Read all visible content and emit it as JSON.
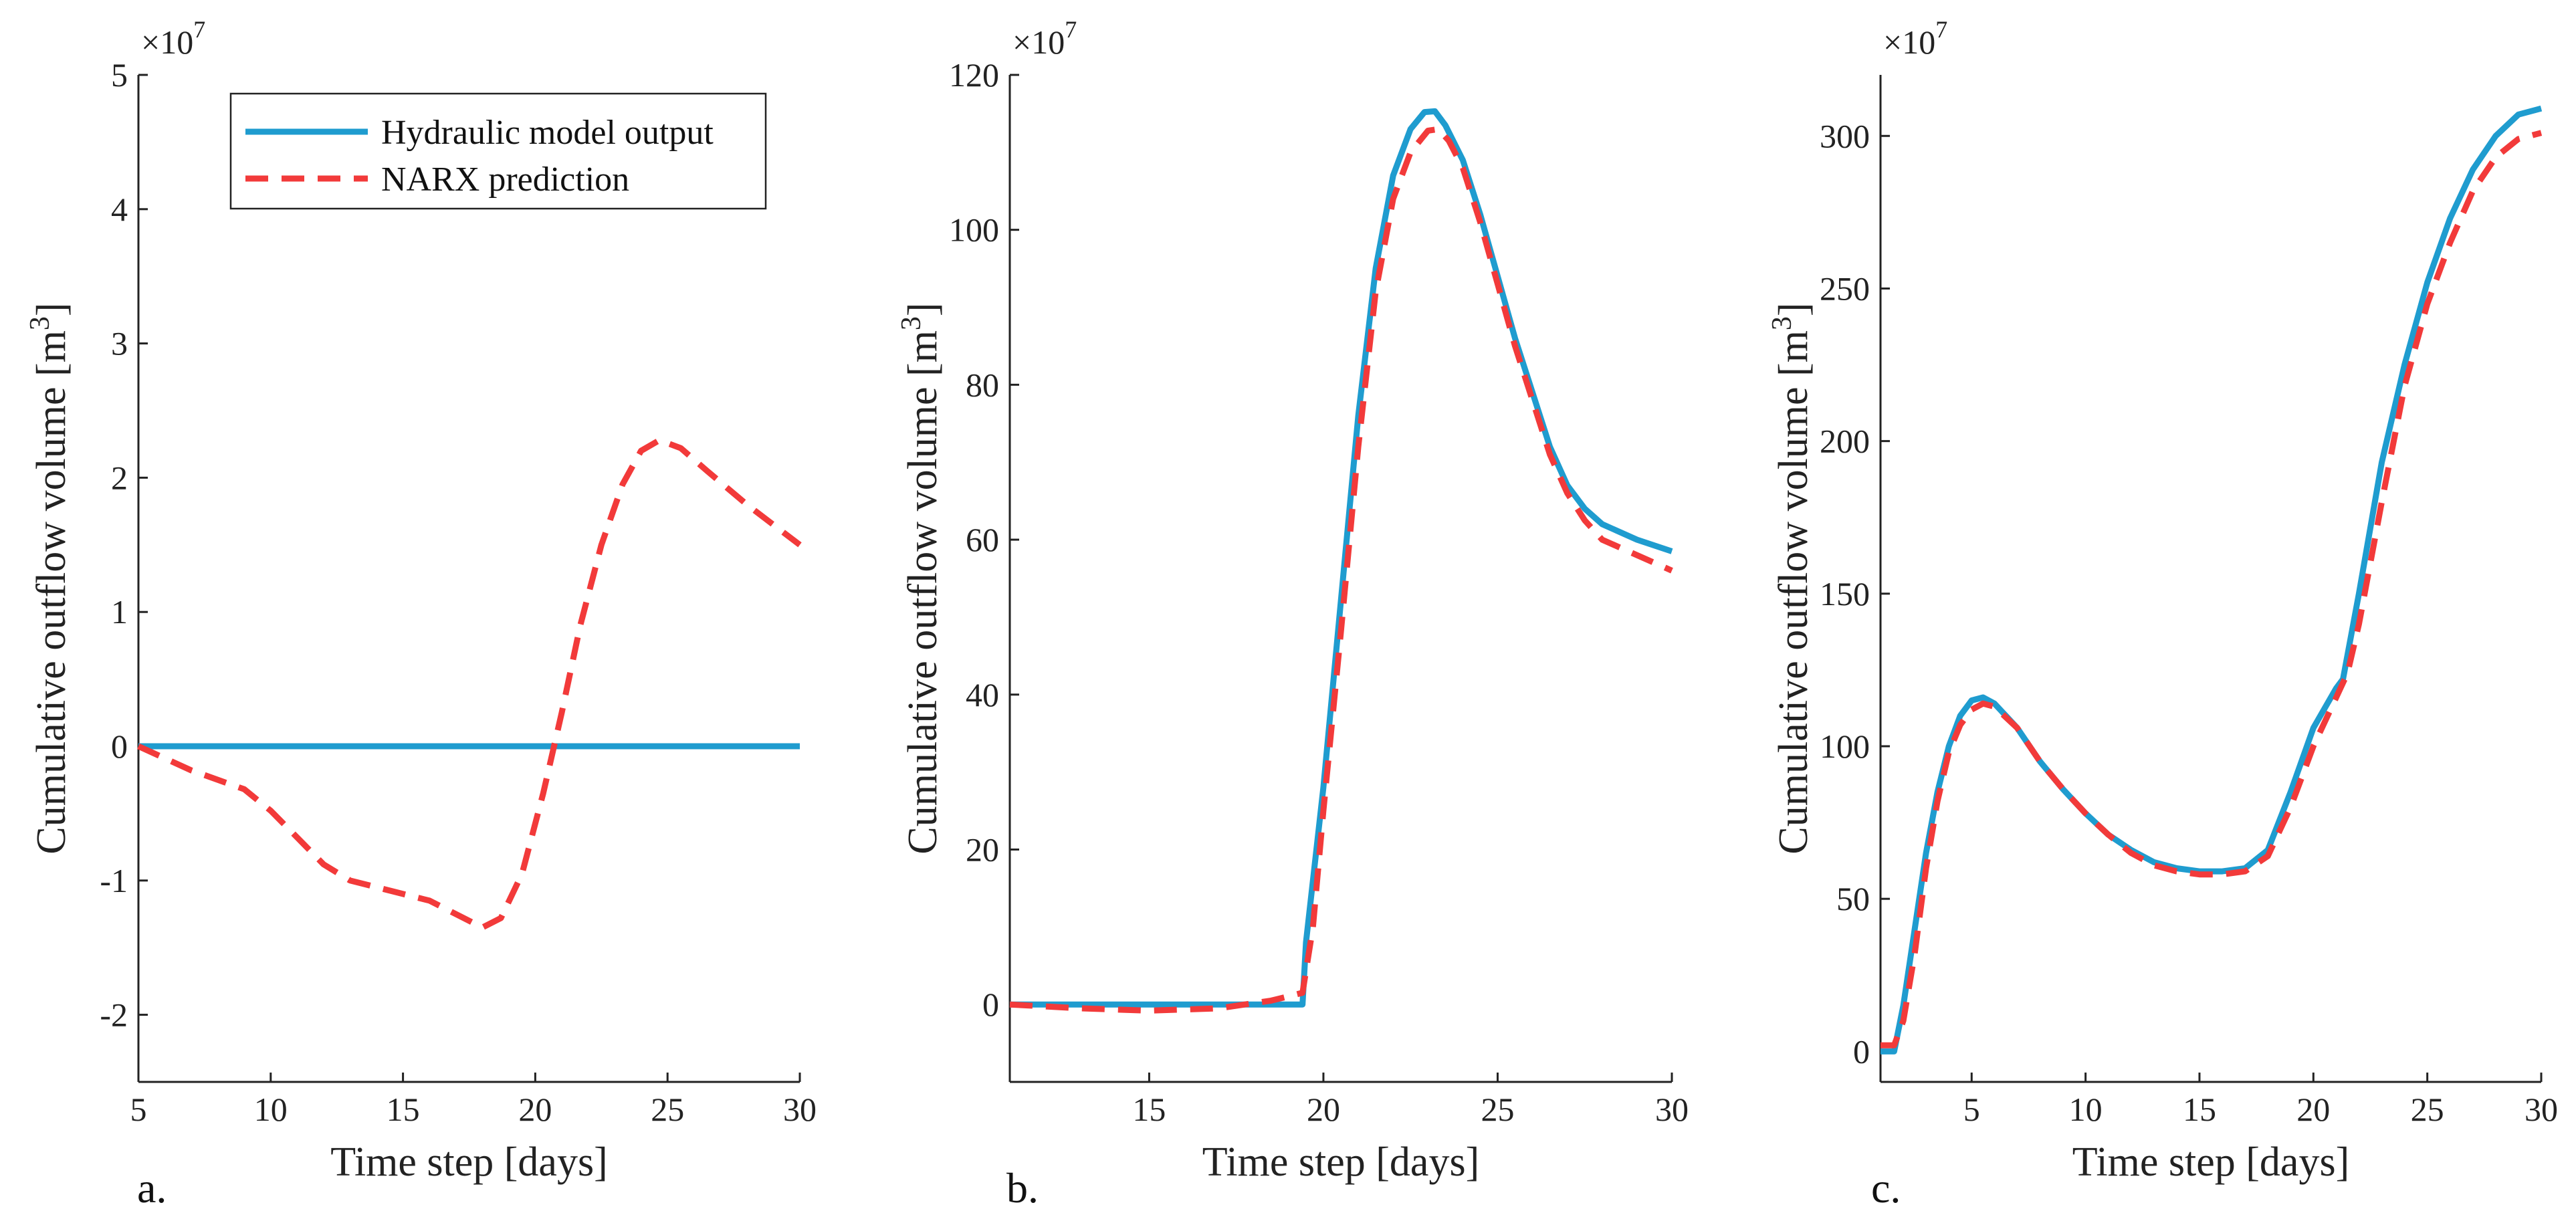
{
  "colors": {
    "hydraulic": "#1f9ccf",
    "narx": "#f23a3a",
    "axis": "#222222"
  },
  "legend": {
    "placement": "top-left of panel a",
    "items": [
      {
        "label": "Hydraulic model output",
        "style": "solid"
      },
      {
        "label": "NARX prediction",
        "style": "dashed"
      }
    ]
  },
  "chart_data": [
    {
      "type": "line",
      "panel_label": "a.",
      "xlabel": "Time step [days]",
      "ylabel_main": "Cumulative outflow volume [m",
      "ylabel_sup": "3",
      "ylabel_close": "]",
      "multiplier_base": "×10",
      "multiplier_exp": "7",
      "xlim": [
        5,
        30
      ],
      "ylim": [
        -2.5,
        5
      ],
      "xticks": [
        5,
        10,
        15,
        20,
        25,
        30
      ],
      "xtick_labels": [
        "5",
        "10",
        "15",
        "20",
        "25",
        "30"
      ],
      "yticks": [
        -2,
        -1,
        0,
        1,
        2,
        3,
        4,
        5
      ],
      "ytick_labels": [
        "-2",
        "-1",
        "0",
        "1",
        "2",
        "3",
        "4",
        "5"
      ],
      "series": [
        {
          "name": "Hydraulic model output",
          "style": "solid",
          "x": [
            5,
            30
          ],
          "y": [
            0,
            0
          ]
        },
        {
          "name": "NARX prediction",
          "style": "dashed",
          "x": [
            5,
            7,
            9,
            10,
            11,
            12,
            13,
            14,
            15,
            16,
            17,
            18,
            18.7,
            19.5,
            20.3,
            21,
            21.7,
            22.5,
            23.3,
            24,
            24.7,
            25.5,
            26.5,
            28,
            29,
            30
          ],
          "y": [
            0,
            -0.18,
            -0.32,
            -0.48,
            -0.68,
            -0.88,
            -1.0,
            -1.05,
            -1.1,
            -1.15,
            -1.25,
            -1.35,
            -1.28,
            -0.95,
            -0.35,
            0.25,
            0.9,
            1.5,
            1.95,
            2.2,
            2.28,
            2.22,
            2.05,
            1.8,
            1.65,
            1.5
          ]
        }
      ]
    },
    {
      "type": "line",
      "panel_label": "b.",
      "xlabel": "Time step [days]",
      "ylabel_main": "Cumulative outflow volume [m",
      "ylabel_sup": "3",
      "ylabel_close": "]",
      "multiplier_base": "×10",
      "multiplier_exp": "7",
      "xlim": [
        11,
        30
      ],
      "ylim": [
        -10,
        120
      ],
      "xticks": [
        15,
        20,
        25,
        30
      ],
      "xtick_labels": [
        "15",
        "20",
        "25",
        "30"
      ],
      "yticks": [
        0,
        20,
        40,
        60,
        80,
        100,
        120
      ],
      "ytick_labels": [
        "0",
        "20",
        "40",
        "60",
        "80",
        "100",
        "120"
      ],
      "series": [
        {
          "name": "Hydraulic model output",
          "style": "solid",
          "x": [
            11,
            15,
            19.4,
            19.5,
            20,
            20.5,
            21,
            21.5,
            22,
            22.5,
            22.9,
            23.2,
            23.5,
            24,
            24.5,
            25,
            25.5,
            26,
            26.5,
            27,
            27.5,
            28,
            29,
            30
          ],
          "y": [
            0,
            0,
            0,
            8,
            28,
            52,
            76,
            95,
            107,
            113,
            115.2,
            115.3,
            113.5,
            109,
            102,
            94,
            86,
            79,
            72,
            67,
            64,
            62,
            60,
            58.5
          ]
        },
        {
          "name": "NARX prediction",
          "style": "dashed",
          "x": [
            11,
            13,
            15,
            17,
            18.5,
            19.4,
            19.7,
            20,
            20.5,
            21,
            21.5,
            22,
            22.5,
            23,
            23.3,
            23.6,
            24,
            24.5,
            25,
            25.5,
            26,
            26.5,
            27,
            27.5,
            28,
            29,
            30
          ],
          "y": [
            0,
            -0.5,
            -0.8,
            -0.5,
            0.5,
            1.5,
            10,
            25,
            48,
            72,
            92,
            104,
            110,
            112.8,
            113,
            111.5,
            108,
            101,
            93,
            85,
            78,
            71,
            66,
            62.5,
            60,
            58,
            56
          ]
        }
      ]
    },
    {
      "type": "line",
      "panel_label": "c.",
      "xlabel": "Time step [days]",
      "ylabel_main": "Cumulative outflow volume [m",
      "ylabel_sup": "3",
      "ylabel_close": "]",
      "multiplier_base": "×10",
      "multiplier_exp": "7",
      "xlim": [
        1,
        30
      ],
      "ylim": [
        -10,
        320
      ],
      "xticks": [
        5,
        10,
        15,
        20,
        25,
        30
      ],
      "xtick_labels": [
        "5",
        "10",
        "15",
        "20",
        "25",
        "30"
      ],
      "yticks": [
        0,
        50,
        100,
        150,
        200,
        250,
        300
      ],
      "ytick_labels": [
        "0",
        "50",
        "100",
        "150",
        "200",
        "250",
        "300"
      ],
      "series": [
        {
          "name": "Hydraulic model output",
          "style": "solid",
          "x": [
            1,
            1.6,
            2,
            2.5,
            3,
            3.5,
            4,
            4.5,
            5,
            5.5,
            6,
            7,
            8,
            9,
            10,
            11,
            12,
            13,
            14,
            15,
            16,
            17,
            18,
            19,
            20,
            21,
            21.3,
            22,
            23,
            24,
            25,
            26,
            27,
            28,
            29,
            30
          ],
          "y": [
            0,
            0,
            15,
            40,
            65,
            85,
            100,
            110,
            115,
            116,
            114,
            106,
            95,
            86,
            78,
            71,
            66,
            62,
            60,
            59,
            59,
            60,
            66,
            85,
            106,
            119,
            122,
            150,
            193,
            225,
            252,
            273,
            289,
            300,
            307,
            309
          ]
        },
        {
          "name": "NARX prediction",
          "style": "dashed",
          "x": [
            1,
            1.6,
            2,
            2.5,
            3,
            3.5,
            4,
            4.5,
            5,
            5.5,
            6,
            7,
            8,
            9,
            10,
            11,
            12,
            13,
            14,
            15,
            16,
            17,
            18,
            19,
            20,
            21,
            21.5,
            22,
            23,
            24,
            25,
            26,
            27,
            28,
            29,
            30
          ],
          "y": [
            2,
            2,
            10,
            32,
            60,
            82,
            98,
            107,
            112,
            114,
            113,
            106,
            95,
            86,
            78,
            71,
            65,
            61,
            59,
            58,
            58,
            59,
            64,
            80,
            100,
            116,
            124,
            140,
            180,
            218,
            245,
            265,
            282,
            293,
            299,
            301
          ]
        }
      ]
    }
  ]
}
